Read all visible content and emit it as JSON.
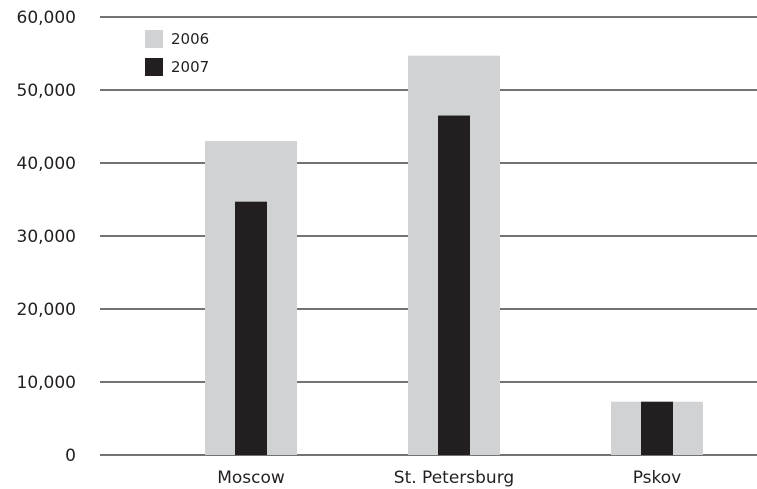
{
  "chart_data": {
    "type": "bar",
    "categories": [
      "Moscow",
      "St. Petersburg",
      "Pskov"
    ],
    "series": [
      {
        "name": "2006",
        "values": [
          43000,
          54700,
          7300
        ],
        "color": "#d1d2d4"
      },
      {
        "name": "2007",
        "values": [
          34700,
          46500,
          7300
        ],
        "color": "#231f20"
      }
    ],
    "yticks": [
      "0",
      "10,000",
      "20,000",
      "30,000",
      "40,000",
      "50,000",
      "60,000"
    ],
    "ylim": [
      0,
      60000
    ],
    "grid": true,
    "legend_position": "top-left",
    "gridline_color": "#231f20",
    "text_color": "#231f20"
  }
}
